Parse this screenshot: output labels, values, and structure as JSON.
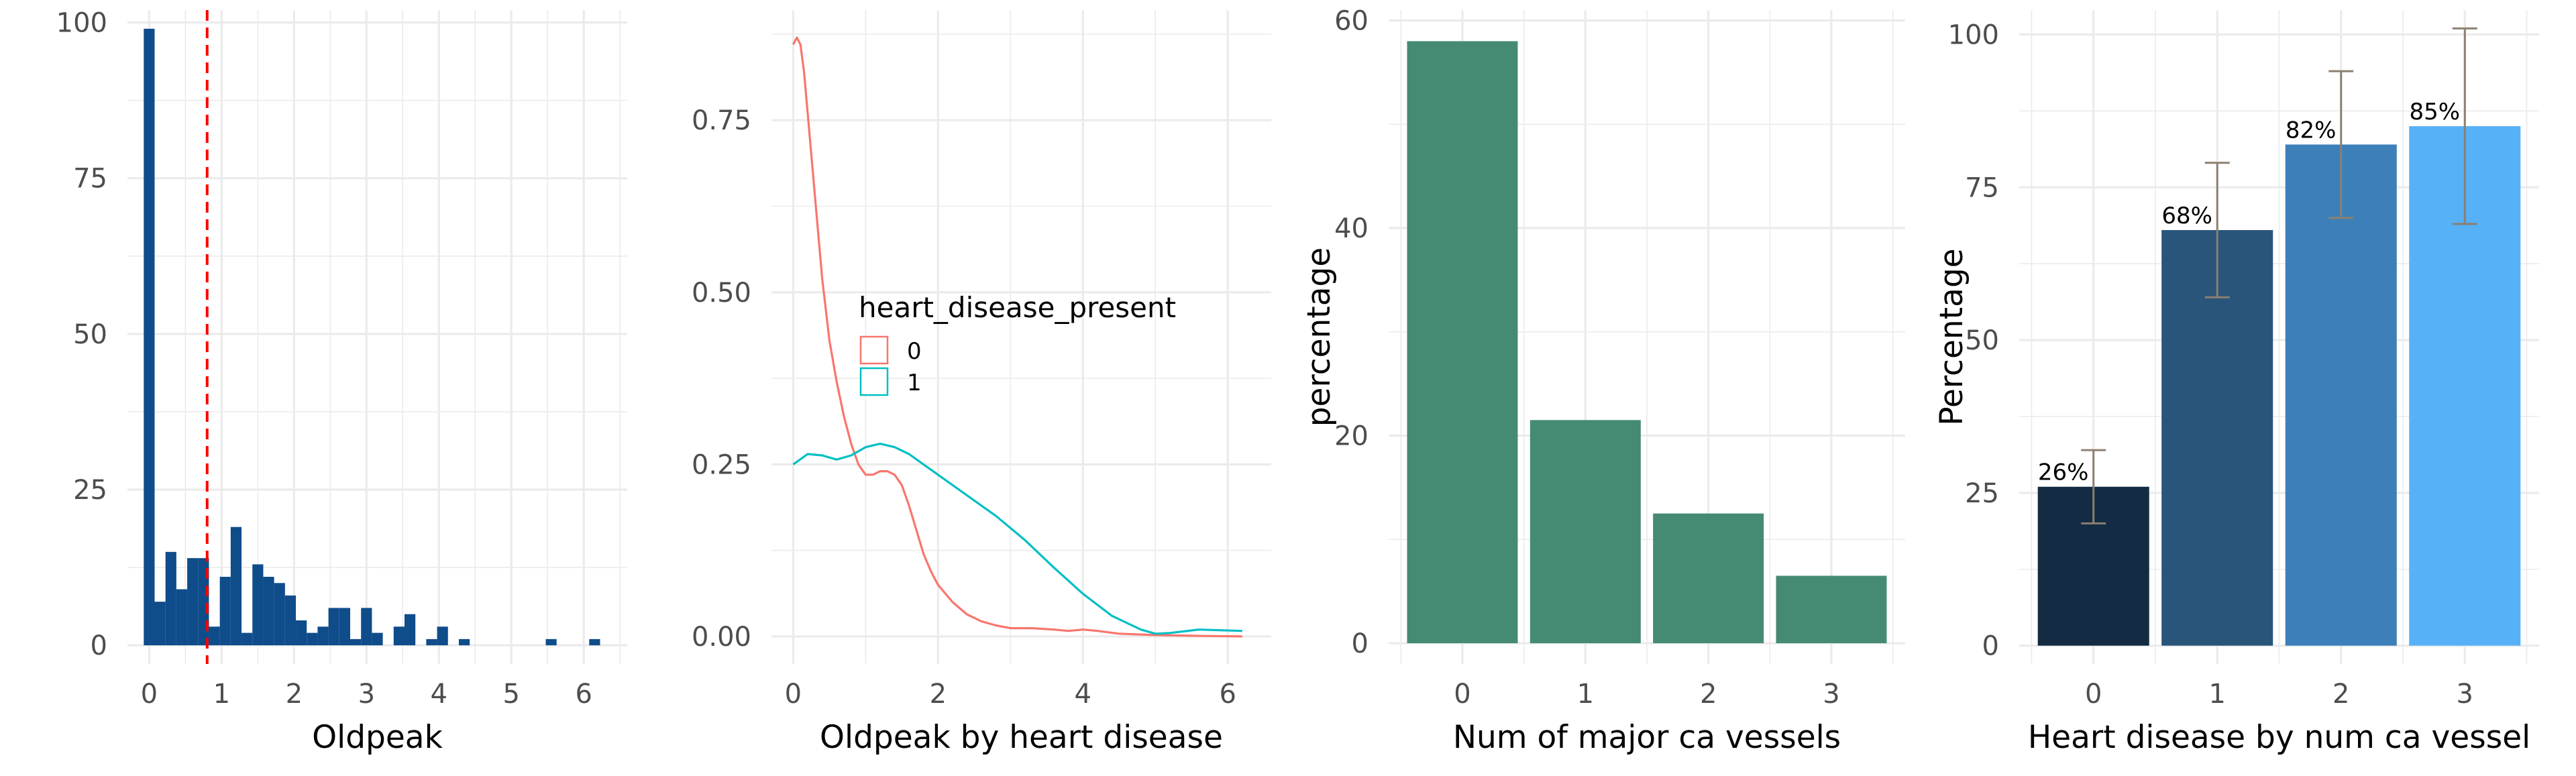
{
  "chart_data": [
    {
      "type": "bar",
      "xlabel": "Oldpeak",
      "xlim": [
        -0.3,
        6.6
      ],
      "ylim": [
        -3,
        102
      ],
      "x_ticks": [
        "0",
        "1",
        "2",
        "3",
        "4",
        "5",
        "6"
      ],
      "y_ticks": [
        "0",
        "25",
        "50",
        "75",
        "100"
      ],
      "bin_width": 0.15,
      "bins": [
        {
          "x": 0.0,
          "value": 99
        },
        {
          "x": 0.15,
          "value": 7
        },
        {
          "x": 0.3,
          "value": 15
        },
        {
          "x": 0.45,
          "value": 9
        },
        {
          "x": 0.6,
          "value": 14
        },
        {
          "x": 0.75,
          "value": 14
        },
        {
          "x": 0.9,
          "value": 3
        },
        {
          "x": 1.05,
          "value": 11
        },
        {
          "x": 1.2,
          "value": 19
        },
        {
          "x": 1.35,
          "value": 2
        },
        {
          "x": 1.5,
          "value": 13
        },
        {
          "x": 1.65,
          "value": 11
        },
        {
          "x": 1.8,
          "value": 10
        },
        {
          "x": 1.95,
          "value": 8
        },
        {
          "x": 2.1,
          "value": 4
        },
        {
          "x": 2.25,
          "value": 2
        },
        {
          "x": 2.4,
          "value": 3
        },
        {
          "x": 2.55,
          "value": 6
        },
        {
          "x": 2.7,
          "value": 6
        },
        {
          "x": 2.85,
          "value": 1
        },
        {
          "x": 3.0,
          "value": 6
        },
        {
          "x": 3.15,
          "value": 2
        },
        {
          "x": 3.3,
          "value": 0
        },
        {
          "x": 3.45,
          "value": 3
        },
        {
          "x": 3.6,
          "value": 5
        },
        {
          "x": 3.75,
          "value": 0
        },
        {
          "x": 3.9,
          "value": 1
        },
        {
          "x": 4.05,
          "value": 3
        },
        {
          "x": 4.2,
          "value": 0
        },
        {
          "x": 4.35,
          "value": 1
        },
        {
          "x": 5.55,
          "value": 1
        },
        {
          "x": 6.15,
          "value": 1
        }
      ],
      "reference_line": {
        "x": 0.8,
        "style": "dashed",
        "color": "#ff0000"
      },
      "bar_color": "#0f4c8a"
    },
    {
      "type": "line",
      "xlabel": "Oldpeak by heart disease",
      "xlim": [
        -0.3,
        6.6
      ],
      "ylim": [
        -0.04,
        0.91
      ],
      "x_ticks": [
        "0",
        "2",
        "4",
        "6"
      ],
      "y_ticks": [
        "0.00",
        "0.25",
        "0.50",
        "0.75"
      ],
      "legend": {
        "title": "heart_disease_present",
        "entries": [
          "0",
          "1"
        ],
        "position": "inside-center-left"
      },
      "series": [
        {
          "name": "0",
          "color": "#f8766d",
          "x": [
            0.0,
            0.05,
            0.1,
            0.15,
            0.2,
            0.3,
            0.4,
            0.5,
            0.6,
            0.7,
            0.8,
            0.9,
            1.0,
            1.1,
            1.2,
            1.3,
            1.4,
            1.5,
            1.6,
            1.7,
            1.8,
            1.9,
            2.0,
            2.2,
            2.4,
            2.6,
            2.8,
            3.0,
            3.3,
            3.6,
            3.8,
            4.0,
            4.2,
            4.5,
            5.0,
            5.5,
            6.2
          ],
          "values": [
            0.86,
            0.87,
            0.86,
            0.82,
            0.76,
            0.64,
            0.52,
            0.43,
            0.37,
            0.32,
            0.28,
            0.25,
            0.235,
            0.235,
            0.24,
            0.24,
            0.235,
            0.22,
            0.19,
            0.155,
            0.12,
            0.095,
            0.075,
            0.05,
            0.032,
            0.022,
            0.016,
            0.012,
            0.012,
            0.01,
            0.008,
            0.01,
            0.008,
            0.004,
            0.002,
            0.001,
            0.0
          ]
        },
        {
          "name": "1",
          "color": "#00bfc4",
          "x": [
            0.0,
            0.2,
            0.4,
            0.6,
            0.8,
            1.0,
            1.2,
            1.4,
            1.6,
            1.8,
            2.0,
            2.4,
            2.8,
            3.2,
            3.6,
            4.0,
            4.4,
            4.8,
            5.0,
            5.2,
            5.6,
            6.2
          ],
          "values": [
            0.25,
            0.265,
            0.263,
            0.257,
            0.263,
            0.275,
            0.28,
            0.275,
            0.265,
            0.25,
            0.235,
            0.205,
            0.175,
            0.14,
            0.1,
            0.062,
            0.03,
            0.01,
            0.004,
            0.005,
            0.01,
            0.008
          ]
        }
      ]
    },
    {
      "type": "bar",
      "xlabel": "Num of major ca vessels",
      "ylabel": "percentage",
      "ylim": [
        -2,
        61
      ],
      "y_ticks": [
        "0",
        "20",
        "40",
        "60"
      ],
      "categories": [
        "0",
        "1",
        "2",
        "3"
      ],
      "values": [
        58.0,
        21.5,
        12.5,
        6.5
      ],
      "bar_color": "#458b73"
    },
    {
      "type": "bar",
      "xlabel": "Heart disease by num ca vessel",
      "ylabel": "Percentage",
      "ylim": [
        -3,
        104
      ],
      "y_ticks": [
        "0",
        "25",
        "50",
        "75",
        "100"
      ],
      "categories": [
        "0",
        "1",
        "2",
        "3"
      ],
      "values": [
        26,
        68,
        82,
        85
      ],
      "labels": [
        "26%",
        "68%",
        "82%",
        "85%"
      ],
      "error_low": [
        20,
        57,
        70,
        69
      ],
      "error_high": [
        32,
        79,
        94,
        101
      ],
      "bar_colors": [
        "#132b43",
        "#29557b",
        "#3d80b9",
        "#56b1f7"
      ],
      "error_color": "#8c8070"
    }
  ]
}
